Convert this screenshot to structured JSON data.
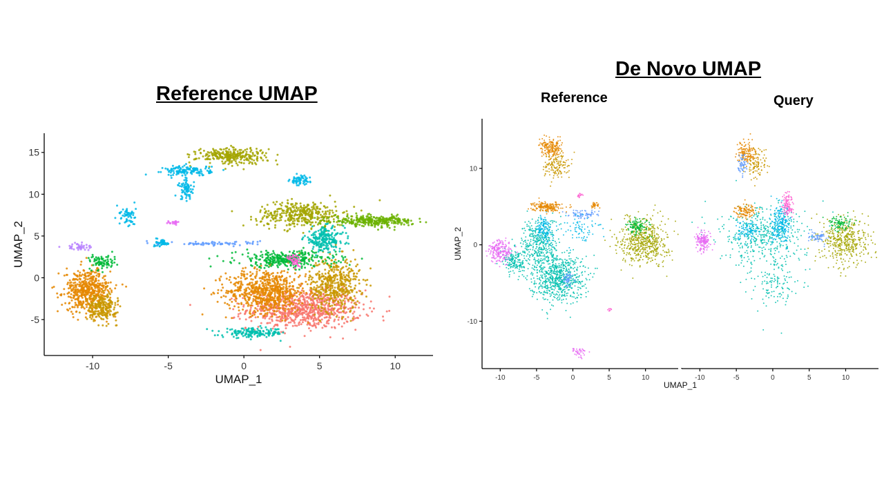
{
  "headings": {
    "left": "Reference UMAP",
    "right": "De Novo UMAP",
    "right_panel_ref": "Reference",
    "right_panel_query": "Query"
  },
  "chart_data": [
    {
      "type": "scatter",
      "title": "Reference UMAP",
      "xlabel": "UMAP_1",
      "ylabel": "UMAP_2",
      "xlim": [
        -13.2,
        12.5
      ],
      "ylim": [
        -9.3,
        17.3
      ],
      "xticks": [
        -10,
        -5,
        0,
        5,
        10
      ],
      "yticks": [
        -5,
        0,
        5,
        10,
        15
      ],
      "grid": false,
      "legend": "none",
      "colors": [
        "#F8766D",
        "#E58700",
        "#C99800",
        "#A3A500",
        "#6BB100",
        "#00BA38",
        "#00C0AF",
        "#00B8E7",
        "#619CFF",
        "#B983FF",
        "#E76BF3",
        "#FD61D1"
      ],
      "clusters": [
        {
          "color": "#F8766D",
          "cx": 4.0,
          "cy": -3.8,
          "rx": 3.4,
          "ry": 2.1,
          "n": 800
        },
        {
          "color": "#E58700",
          "cx": 1.5,
          "cy": -1.6,
          "rx": 2.4,
          "ry": 2.4,
          "n": 700
        },
        {
          "color": "#C99800",
          "cx": 6.0,
          "cy": -0.8,
          "rx": 1.5,
          "ry": 3.0,
          "n": 450
        },
        {
          "color": "#A3A500",
          "cx": 3.8,
          "cy": 7.6,
          "rx": 2.6,
          "ry": 1.4,
          "n": 380
        },
        {
          "color": "#00BA38",
          "cx": 2.8,
          "cy": 2.2,
          "rx": 3.0,
          "ry": 0.9,
          "n": 320
        },
        {
          "color": "#00C0AF",
          "cx": 5.3,
          "cy": 4.6,
          "rx": 1.2,
          "ry": 1.3,
          "n": 220
        },
        {
          "color": "#00C0AF",
          "cx": 0.7,
          "cy": -6.6,
          "rx": 1.9,
          "ry": 0.5,
          "n": 170
        },
        {
          "color": "#6BB100",
          "cx": 8.6,
          "cy": 6.8,
          "rx": 2.4,
          "ry": 0.55,
          "n": 300
        },
        {
          "color": "#A3A500",
          "cx": -0.8,
          "cy": 14.6,
          "rx": 2.1,
          "ry": 0.9,
          "n": 280
        },
        {
          "color": "#00B8E7",
          "cx": -3.7,
          "cy": 12.8,
          "rx": 1.4,
          "ry": 0.55,
          "n": 130
        },
        {
          "color": "#00B8E7",
          "cx": -3.8,
          "cy": 10.6,
          "rx": 0.5,
          "ry": 1.1,
          "n": 70
        },
        {
          "color": "#00B8E7",
          "cx": 3.7,
          "cy": 11.6,
          "rx": 0.6,
          "ry": 0.55,
          "n": 60
        },
        {
          "color": "#E58700",
          "cx": -10.3,
          "cy": -1.5,
          "rx": 1.4,
          "ry": 2.3,
          "n": 520
        },
        {
          "color": "#C99800",
          "cx": -9.4,
          "cy": -3.6,
          "rx": 0.9,
          "ry": 1.4,
          "n": 220
        },
        {
          "color": "#00BA38",
          "cx": -9.3,
          "cy": 1.9,
          "rx": 0.8,
          "ry": 0.8,
          "n": 80
        },
        {
          "color": "#B983FF",
          "cx": -11.0,
          "cy": 3.7,
          "rx": 0.7,
          "ry": 0.4,
          "n": 40
        },
        {
          "color": "#00B8E7",
          "cx": -7.7,
          "cy": 7.3,
          "rx": 0.5,
          "ry": 1.2,
          "n": 60
        },
        {
          "color": "#00B8E7",
          "cx": -5.4,
          "cy": 4.2,
          "rx": 0.4,
          "ry": 0.4,
          "n": 50
        },
        {
          "color": "#619CFF",
          "cx": -1.8,
          "cy": 4.1,
          "rx": 2.6,
          "ry": 0.25,
          "n": 70
        },
        {
          "color": "#FD61D1",
          "cx": 3.4,
          "cy": 2.0,
          "rx": 0.4,
          "ry": 0.9,
          "n": 40
        },
        {
          "color": "#E76BF3",
          "cx": -4.6,
          "cy": 6.6,
          "rx": 0.4,
          "ry": 0.2,
          "n": 18
        }
      ]
    },
    {
      "type": "scatter",
      "title": "Reference",
      "xlabel": "UMAP_1",
      "ylabel": "UMAP_2",
      "xlim": [
        -12.5,
        14.5
      ],
      "ylim": [
        -16.2,
        16.5
      ],
      "xticks": [
        -10,
        -5,
        0,
        5,
        10
      ],
      "yticks": [
        -10,
        0,
        10
      ],
      "grid": false,
      "legend": "none",
      "colors": [
        "#00C0AF",
        "#00BA38",
        "#E58700",
        "#C99800",
        "#A3A500",
        "#619CFF",
        "#E76BF3",
        "#00B8E7",
        "#FD61D1"
      ],
      "clusters": [
        {
          "color": "#00C0AF",
          "cx": -2.2,
          "cy": -4.2,
          "rx": 3.4,
          "ry": 2.8,
          "n": 700
        },
        {
          "color": "#00C0AF",
          "cx": -4.5,
          "cy": 0.2,
          "rx": 2.2,
          "ry": 3.0,
          "n": 350
        },
        {
          "color": "#00C0AF",
          "cx": -8.0,
          "cy": -2.2,
          "rx": 1.5,
          "ry": 1.4,
          "n": 150
        },
        {
          "color": "#00B8E7",
          "cx": -4.0,
          "cy": 2.0,
          "rx": 1.0,
          "ry": 1.6,
          "n": 120
        },
        {
          "color": "#E58700",
          "cx": -3.5,
          "cy": 5.0,
          "rx": 1.8,
          "ry": 0.6,
          "n": 180
        },
        {
          "color": "#E58700",
          "cx": -3.0,
          "cy": 12.6,
          "rx": 1.4,
          "ry": 1.0,
          "n": 180
        },
        {
          "color": "#C99800",
          "cx": -2.3,
          "cy": 10.4,
          "rx": 1.6,
          "ry": 1.6,
          "n": 140
        },
        {
          "color": "#A3A500",
          "cx": 9.8,
          "cy": 0.5,
          "rx": 3.0,
          "ry": 2.7,
          "n": 550
        },
        {
          "color": "#00BA38",
          "cx": 9.0,
          "cy": 2.4,
          "rx": 1.4,
          "ry": 1.0,
          "n": 110
        },
        {
          "color": "#E76BF3",
          "cx": -10.0,
          "cy": -0.8,
          "rx": 1.6,
          "ry": 1.3,
          "n": 200
        },
        {
          "color": "#619CFF",
          "cx": -0.7,
          "cy": -4.6,
          "rx": 0.6,
          "ry": 0.9,
          "n": 50
        },
        {
          "color": "#619CFF",
          "cx": 1.5,
          "cy": 4.0,
          "rx": 2.0,
          "ry": 0.5,
          "n": 70
        },
        {
          "color": "#00B8E7",
          "cx": 1.0,
          "cy": 2.0,
          "rx": 2.6,
          "ry": 2.0,
          "n": 70
        },
        {
          "color": "#E76BF3",
          "cx": 0.8,
          "cy": -14.0,
          "rx": 1.0,
          "ry": 0.55,
          "n": 40
        },
        {
          "color": "#FD61D1",
          "cx": 1.0,
          "cy": 6.5,
          "rx": 0.3,
          "ry": 0.3,
          "n": 15
        },
        {
          "color": "#E58700",
          "cx": 3.0,
          "cy": 5.2,
          "rx": 0.5,
          "ry": 0.4,
          "n": 30
        },
        {
          "color": "#FD61D1",
          "cx": 5.0,
          "cy": -8.5,
          "rx": 0.3,
          "ry": 0.2,
          "n": 8
        }
      ]
    },
    {
      "type": "scatter",
      "title": "Query",
      "xlabel": "UMAP_1",
      "ylabel": "UMAP_2",
      "xlim": [
        -12.5,
        14.5
      ],
      "ylim": [
        -16.2,
        16.5
      ],
      "xticks": [
        -10,
        -5,
        0,
        5,
        10
      ],
      "yticks": [
        -10,
        0,
        10
      ],
      "grid": false,
      "legend": "none",
      "colors": [
        "#00C0AF",
        "#00B8E7",
        "#E58700",
        "#C99800",
        "#A3A500",
        "#619CFF",
        "#E76BF3",
        "#FD61D1",
        "#00BA38"
      ],
      "clusters": [
        {
          "color": "#00C0AF",
          "cx": -1.5,
          "cy": 1.0,
          "rx": 5.5,
          "ry": 3.5,
          "n": 420
        },
        {
          "color": "#00B8E7",
          "cx": 1.2,
          "cy": 2.5,
          "rx": 1.2,
          "ry": 2.2,
          "n": 230
        },
        {
          "color": "#00B8E7",
          "cx": -3.5,
          "cy": 2.0,
          "rx": 1.6,
          "ry": 1.2,
          "n": 90
        },
        {
          "color": "#E58700",
          "cx": -3.8,
          "cy": 4.5,
          "rx": 1.3,
          "ry": 0.8,
          "n": 110
        },
        {
          "color": "#E58700",
          "cx": -3.6,
          "cy": 12.0,
          "rx": 1.2,
          "ry": 1.4,
          "n": 130
        },
        {
          "color": "#C99800",
          "cx": -2.2,
          "cy": 10.5,
          "rx": 1.6,
          "ry": 1.8,
          "n": 100
        },
        {
          "color": "#619CFF",
          "cx": -4.2,
          "cy": 10.5,
          "rx": 0.5,
          "ry": 1.3,
          "n": 60
        },
        {
          "color": "#A3A500",
          "cx": 10.0,
          "cy": 0.5,
          "rx": 3.0,
          "ry": 2.7,
          "n": 420
        },
        {
          "color": "#00BA38",
          "cx": 9.2,
          "cy": 2.8,
          "rx": 1.4,
          "ry": 1.0,
          "n": 90
        },
        {
          "color": "#E76BF3",
          "cx": -9.5,
          "cy": 0.5,
          "rx": 0.9,
          "ry": 1.1,
          "n": 150
        },
        {
          "color": "#FD61D1",
          "cx": 2.0,
          "cy": 5.2,
          "rx": 0.6,
          "ry": 1.4,
          "n": 100
        },
        {
          "color": "#00C0AF",
          "cx": 0.5,
          "cy": -5.0,
          "rx": 3.0,
          "ry": 3.0,
          "n": 120
        },
        {
          "color": "#619CFF",
          "cx": 6.2,
          "cy": 1.0,
          "rx": 1.2,
          "ry": 0.6,
          "n": 60
        }
      ]
    }
  ]
}
